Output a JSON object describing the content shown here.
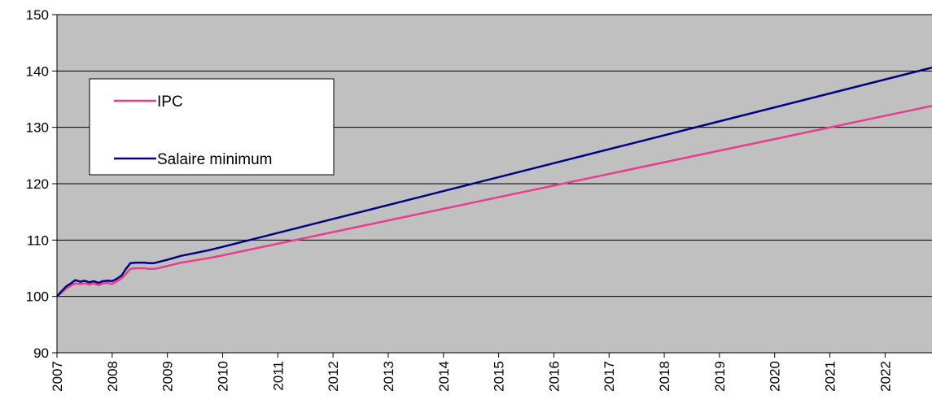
{
  "chart_data": {
    "type": "line",
    "title": "",
    "xlabel": "",
    "ylabel": "",
    "xlim": [
      2007,
      2022.85
    ],
    "ylim": [
      90,
      150
    ],
    "yticks": [
      90,
      100,
      110,
      120,
      130,
      140,
      150
    ],
    "xticks": [
      "2007",
      "2008",
      "2009",
      "2010",
      "2011",
      "2012",
      "2013",
      "2014",
      "2015",
      "2016",
      "2017",
      "2018",
      "2019",
      "2020",
      "2021",
      "2022"
    ],
    "grid": "horizontal",
    "plot_background": "#c0c0c0",
    "legend_placement": "top-left",
    "series": [
      {
        "name": "IPC",
        "color": "#e83e8c",
        "x": [
          2007.0,
          2007.08,
          2007.17,
          2007.25,
          2007.33,
          2007.42,
          2007.5,
          2007.58,
          2007.67,
          2007.75,
          2007.83,
          2007.92,
          2008.0,
          2008.08,
          2008.17,
          2008.25,
          2008.33,
          2008.42,
          2008.5,
          2008.58,
          2008.67,
          2008.75,
          2008.83,
          2009.0,
          2009.25,
          2009.5,
          2009.75,
          2010.0,
          2022.85
        ],
        "y": [
          100.0,
          100.6,
          101.4,
          101.9,
          102.3,
          102.2,
          102.3,
          102.1,
          102.3,
          102.0,
          102.3,
          102.4,
          102.2,
          102.6,
          103.2,
          104.0,
          104.9,
          105.0,
          105.0,
          105.0,
          104.9,
          104.9,
          105.0,
          105.4,
          106.0,
          106.4,
          106.8,
          107.3,
          133.8
        ]
      },
      {
        "name": "Salaire minimum",
        "color": "#000080",
        "x": [
          2007.0,
          2007.08,
          2007.17,
          2007.25,
          2007.33,
          2007.42,
          2007.5,
          2007.58,
          2007.67,
          2007.75,
          2007.83,
          2007.92,
          2008.0,
          2008.08,
          2008.17,
          2008.25,
          2008.33,
          2008.42,
          2008.5,
          2008.58,
          2008.67,
          2008.75,
          2008.83,
          2009.0,
          2009.25,
          2009.5,
          2009.75,
          2010.0,
          2022.85
        ],
        "y": [
          100.0,
          100.9,
          101.8,
          102.3,
          102.9,
          102.6,
          102.8,
          102.5,
          102.7,
          102.4,
          102.7,
          102.8,
          102.7,
          103.1,
          103.7,
          104.9,
          105.9,
          106.0,
          106.0,
          106.0,
          105.9,
          105.9,
          106.1,
          106.5,
          107.2,
          107.7,
          108.2,
          108.8,
          140.6
        ]
      }
    ]
  }
}
